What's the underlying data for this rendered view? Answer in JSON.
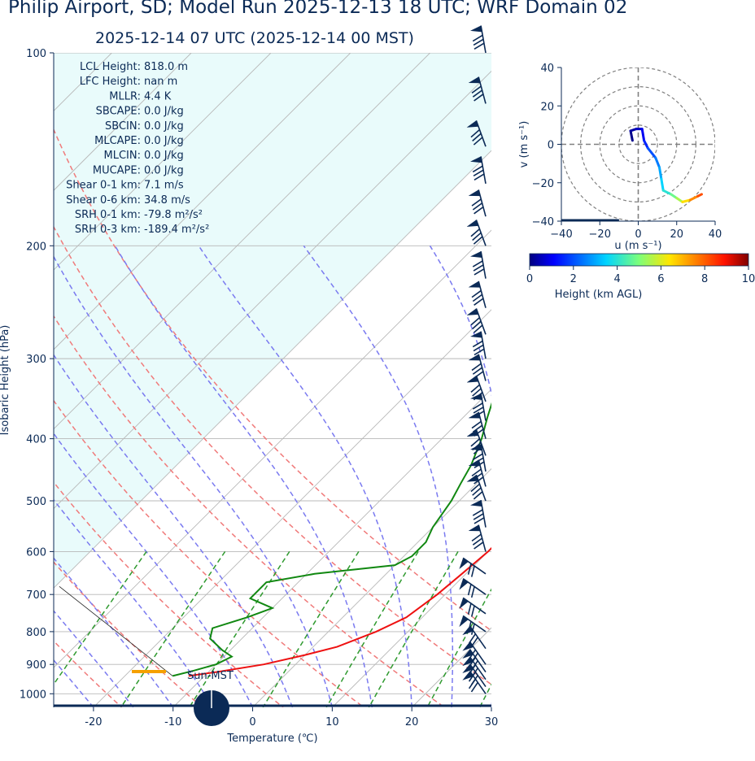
{
  "header": {
    "title": "Philip Airport, SD; Model Run 2025-12-13 18 UTC; WRF Domain 02",
    "subtitle": "2025-12-14 07 UTC  (2025-12-14 00 MST)"
  },
  "stats": [
    {
      "label": "LCL Height:",
      "value": "818.0 m"
    },
    {
      "label": "LFC Height:",
      "value": "nan m"
    },
    {
      "label": "MLLR:",
      "value": "4.4 K"
    },
    {
      "label": "SBCAPE:",
      "value": "0.0 J/kg"
    },
    {
      "label": "SBCIN:",
      "value": "0.0 J/kg"
    },
    {
      "label": "MLCAPE:",
      "value": "0.0 J/kg"
    },
    {
      "label": "MLCIN:",
      "value": "0.0 J/kg"
    },
    {
      "label": "MUCAPE:",
      "value": "0.0 J/kg"
    },
    {
      "label": "Shear 0-1 km:",
      "value": "7.1 m/s"
    },
    {
      "label": "Shear 0-6 km:",
      "value": "34.8 m/s"
    },
    {
      "label": "SRH 0-1 km:",
      "value": "-79.8 m²/s²"
    },
    {
      "label": "SRH 0-3 km:",
      "value": "-189.4 m²/s²"
    }
  ],
  "sun_label": "Sun-MST",
  "chart_data": [
    {
      "type": "line",
      "chart": "skew-t",
      "xlabel": "Temperature (℃)",
      "ylabel": "Isobaric Height (hPa)",
      "xlim": [
        -25,
        30
      ],
      "ylim": [
        1050,
        100
      ],
      "x_ticks": [
        -20,
        -10,
        0,
        10,
        20,
        30
      ],
      "y_ticks": [
        100,
        200,
        300,
        400,
        500,
        600,
        700,
        800,
        900,
        1000
      ],
      "series": [
        {
          "role": "temperature",
          "color": "#ee1111",
          "points": [
            [
              938,
              -12
            ],
            [
              925,
              -9
            ],
            [
              900,
              -4
            ],
            [
              870,
              0
            ],
            [
              845,
              3
            ],
            [
              800,
              6
            ],
            [
              760,
              8
            ],
            [
              700,
              9
            ],
            [
              650,
              9.5
            ],
            [
              600,
              10
            ],
            [
              550,
              10
            ],
            [
              500,
              9
            ],
            [
              450,
              7.5
            ],
            [
              400,
              5
            ],
            [
              350,
              2
            ],
            [
              300,
              -2
            ],
            [
              250,
              -5
            ],
            [
              220,
              -6
            ],
            [
              200,
              -6.5
            ],
            [
              185,
              -6.5
            ],
            [
              160,
              -3
            ],
            [
              140,
              2
            ],
            [
              120,
              8
            ],
            [
              100,
              17
            ]
          ]
        },
        {
          "role": "dewpoint",
          "color": "#118811",
          "points": [
            [
              938,
              -14
            ],
            [
              920,
              -12
            ],
            [
              900,
              -10
            ],
            [
              875,
              -9
            ],
            [
              855,
              -11
            ],
            [
              820,
              -14
            ],
            [
              790,
              -15
            ],
            [
              760,
              -12
            ],
            [
              735,
              -10
            ],
            [
              710,
              -14
            ],
            [
              670,
              -14
            ],
            [
              650,
              -9
            ],
            [
              630,
              0
            ],
            [
              610,
              1
            ],
            [
              580,
              1
            ],
            [
              550,
              0
            ],
            [
              500,
              -1
            ],
            [
              470,
              -2
            ],
            [
              440,
              -3
            ],
            [
              400,
              -5
            ],
            [
              370,
              -7
            ],
            [
              340,
              -9
            ],
            [
              320,
              -9
            ],
            [
              300,
              -7
            ],
            [
              270,
              -6
            ],
            [
              240,
              -5
            ],
            [
              220,
              -5
            ],
            [
              200,
              -4
            ],
            [
              180,
              -3
            ],
            [
              160,
              -3
            ],
            [
              145,
              -4
            ],
            [
              130,
              -2
            ],
            [
              115,
              3
            ],
            [
              100,
              12
            ]
          ]
        }
      ],
      "dry_adiabats_theta_C": [
        -40,
        -30,
        -20,
        -10,
        0,
        10,
        20,
        30,
        40
      ],
      "moist_adiabats_theta_C": [
        -20,
        -15,
        -10,
        -5,
        0,
        5,
        10,
        15,
        20,
        25,
        30
      ],
      "mixing_ratios_gkg": [
        0.4,
        1,
        2,
        4,
        7,
        10,
        16,
        24
      ],
      "wind_barbs_levels_hPa": [
        100,
        120,
        140,
        160,
        180,
        200,
        225,
        250,
        275,
        300,
        325,
        350,
        375,
        400,
        425,
        450,
        475,
        500,
        550,
        600,
        650,
        700,
        750,
        800,
        850,
        900,
        925,
        950,
        975,
        1000
      ],
      "cape_fill_color": "#e9fbfb"
    },
    {
      "type": "line",
      "chart": "hodograph",
      "xlabel": "u (m s⁻¹)",
      "ylabel": "v (m s⁻¹)",
      "xlim": [
        -40,
        40
      ],
      "ylim": [
        -40,
        40
      ],
      "x_ticks": [
        -40,
        -20,
        0,
        20,
        40
      ],
      "y_ticks": [
        -40,
        -20,
        0,
        20,
        40
      ],
      "rings": [
        10,
        20,
        30,
        40
      ],
      "points": [
        [
          -3,
          2,
          0.1
        ],
        [
          -4,
          7,
          0.3
        ],
        [
          -1,
          8,
          0.6
        ],
        [
          2,
          8,
          1.0
        ],
        [
          3,
          2,
          1.5
        ],
        [
          5,
          -2,
          2.0
        ],
        [
          9,
          -7,
          2.5
        ],
        [
          11,
          -12,
          3.0
        ],
        [
          12,
          -18,
          3.5
        ],
        [
          13,
          -24,
          4.0
        ],
        [
          17,
          -26,
          4.8
        ],
        [
          20,
          -28,
          5.5
        ],
        [
          23,
          -30,
          6.5
        ],
        [
          27,
          -29,
          7.5
        ],
        [
          31,
          -27,
          8.2
        ],
        [
          33,
          -26,
          8.8
        ]
      ]
    },
    {
      "type": "colorbar",
      "xlabel": "Height (km AGL)",
      "range": [
        0,
        10
      ],
      "ticks": [
        0,
        2,
        4,
        6,
        8,
        10
      ]
    }
  ]
}
